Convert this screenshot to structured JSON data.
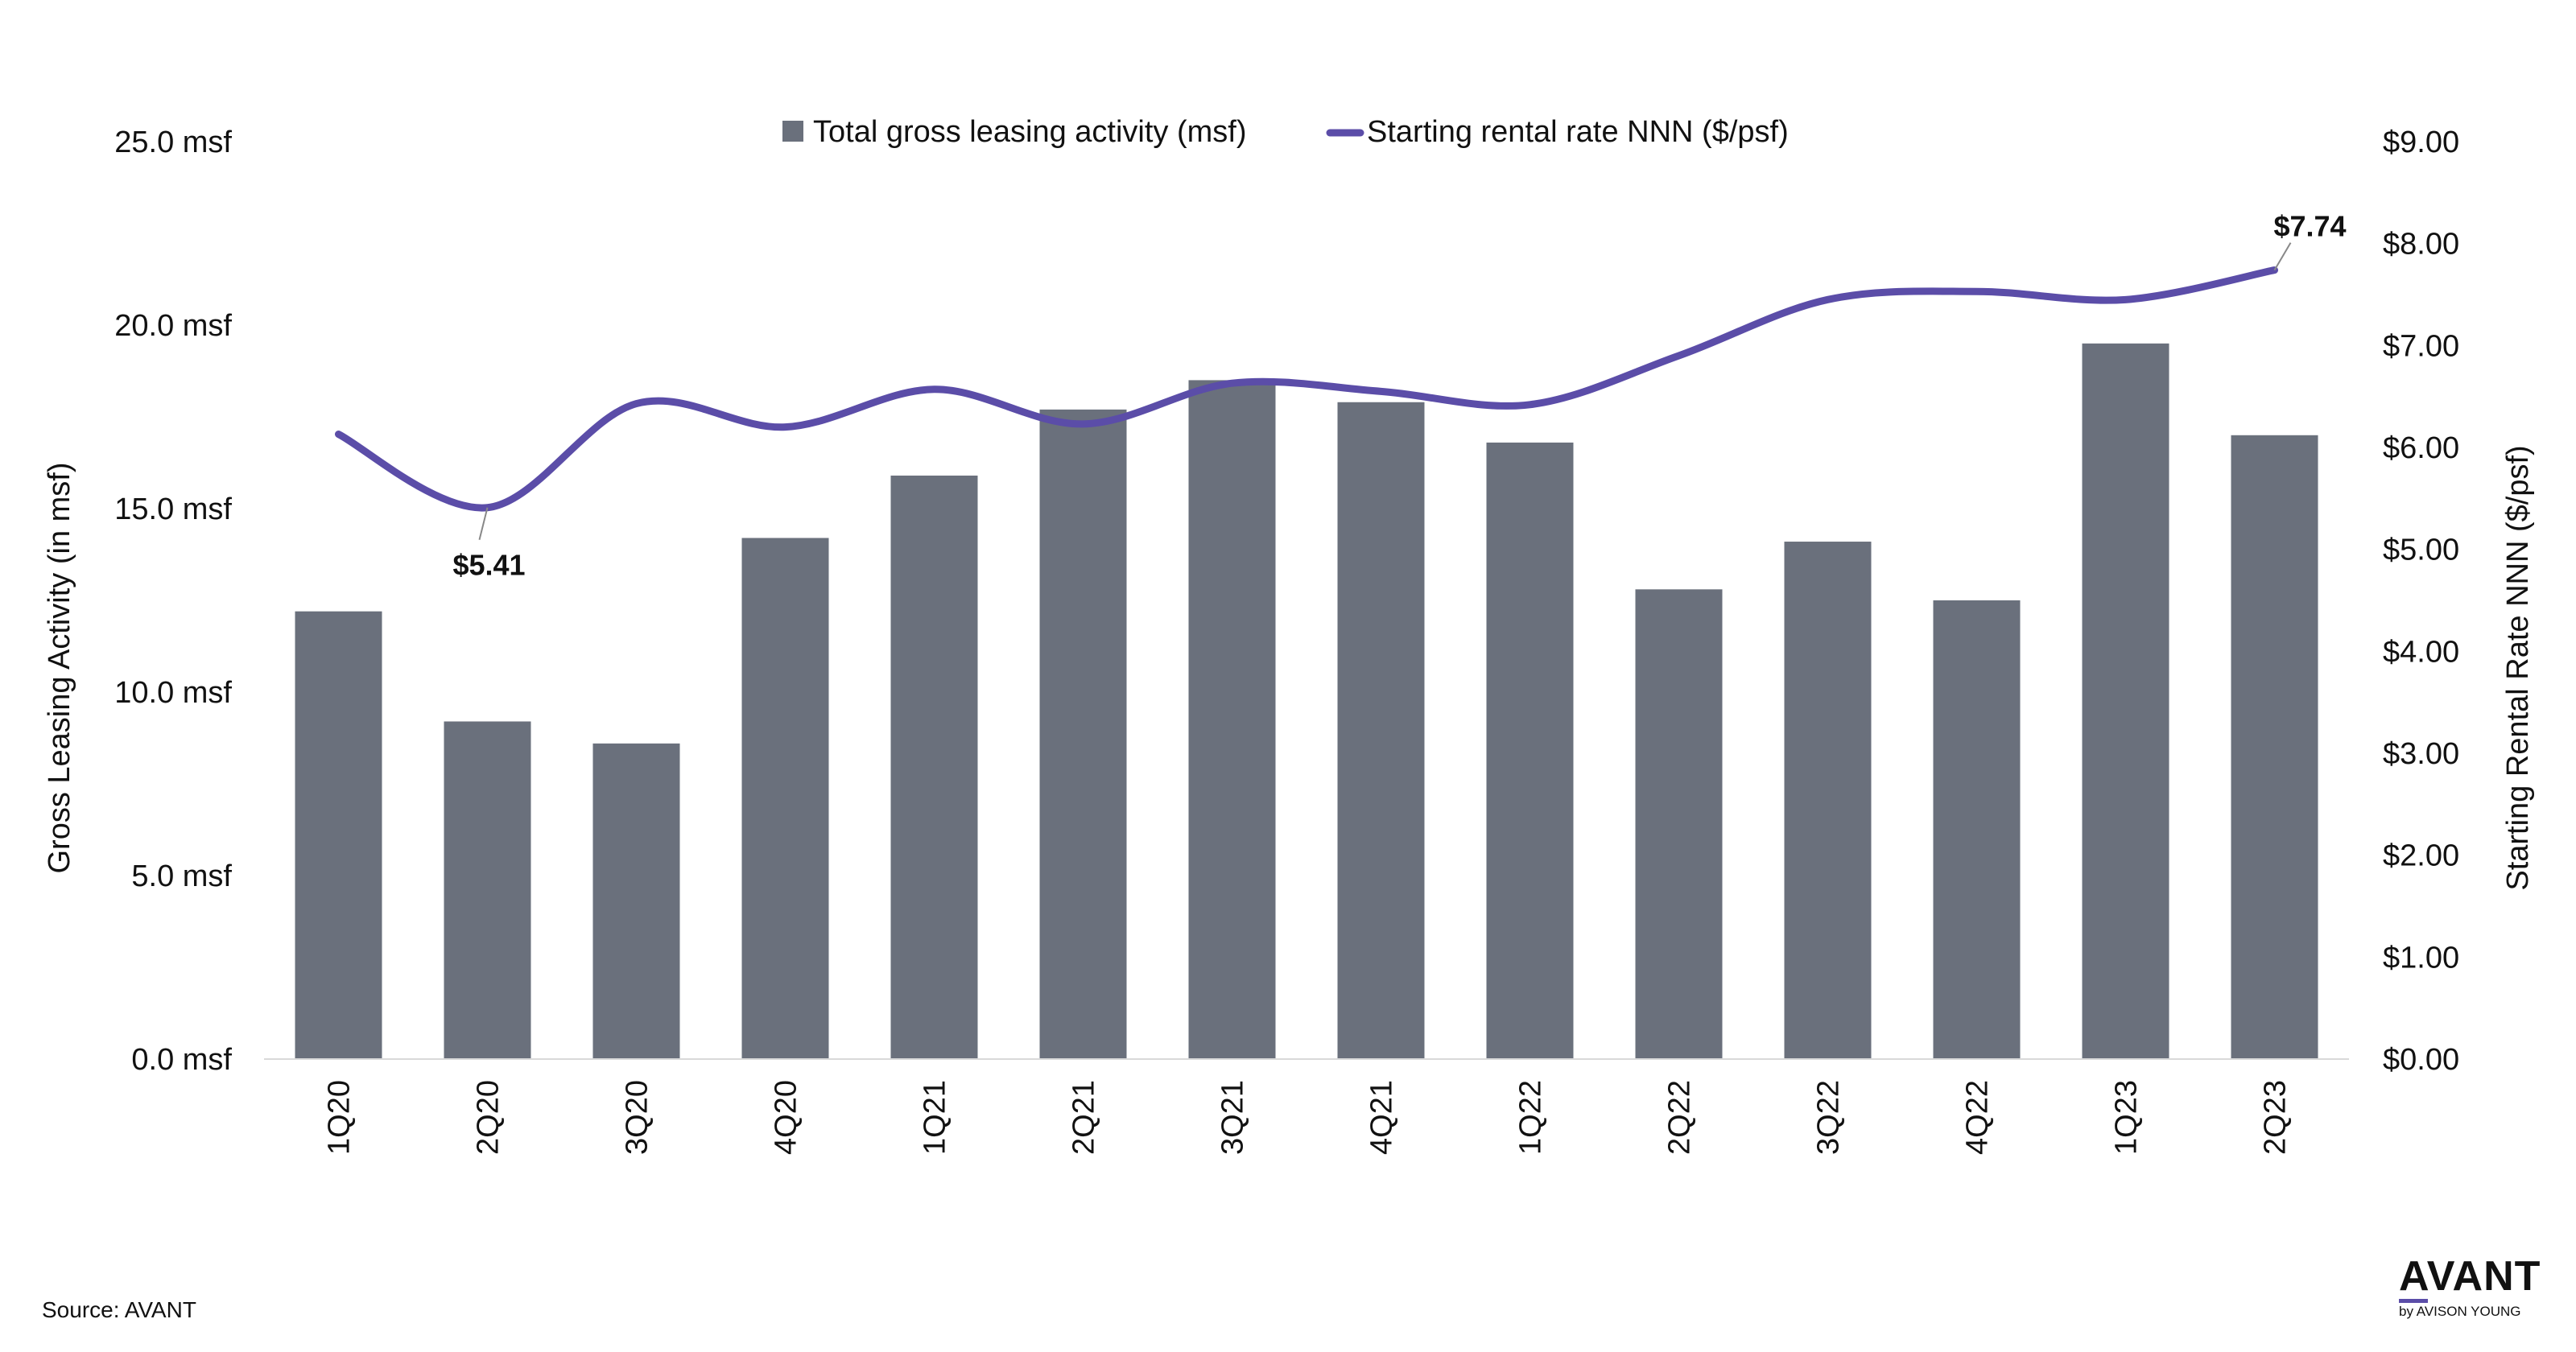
{
  "chart_data": {
    "type": "bar",
    "categories": [
      "1Q20",
      "2Q20",
      "3Q20",
      "4Q20",
      "1Q21",
      "2Q21",
      "3Q21",
      "4Q21",
      "1Q22",
      "2Q22",
      "3Q22",
      "4Q22",
      "1Q23",
      "2Q23"
    ],
    "series": [
      {
        "name": "Total gross leasing activity (msf)",
        "type": "bar",
        "axis": "left",
        "color": "#6a707c",
        "values": [
          12.2,
          9.2,
          8.6,
          14.2,
          15.9,
          17.7,
          18.5,
          17.9,
          16.8,
          12.8,
          14.1,
          12.5,
          19.5,
          17.0
        ]
      },
      {
        "name": "Starting rental rate NNN ($/psf)",
        "type": "line",
        "axis": "right",
        "color": "#5b4da8",
        "values": [
          6.13,
          5.41,
          6.43,
          6.2,
          6.57,
          6.23,
          6.63,
          6.55,
          6.42,
          6.9,
          7.45,
          7.53,
          7.45,
          7.74
        ]
      }
    ],
    "ylabel": "Gross Leasing Activity (in msf)",
    "y2label": "Starting Rental Rate NNN ($/psf)",
    "ylim": [
      0,
      25
    ],
    "y2lim": [
      0,
      9
    ],
    "yticks": [
      "0.0 msf",
      "5.0 msf",
      "10.0 msf",
      "15.0 msf",
      "20.0 msf",
      "25.0 msf"
    ],
    "y2ticks": [
      "$0.00",
      "$1.00",
      "$2.00",
      "$3.00",
      "$4.00",
      "$5.00",
      "$6.00",
      "$7.00",
      "$8.00",
      "$9.00"
    ],
    "annotations": [
      {
        "label": "$5.41",
        "index": 1
      },
      {
        "label": "$7.74",
        "index": 13
      }
    ],
    "legend_position": "top-center",
    "grid": false
  },
  "footer": {
    "source": "Source: AVANT"
  },
  "logo": {
    "main": "AVANT",
    "sub": "by AVISON YOUNG"
  }
}
